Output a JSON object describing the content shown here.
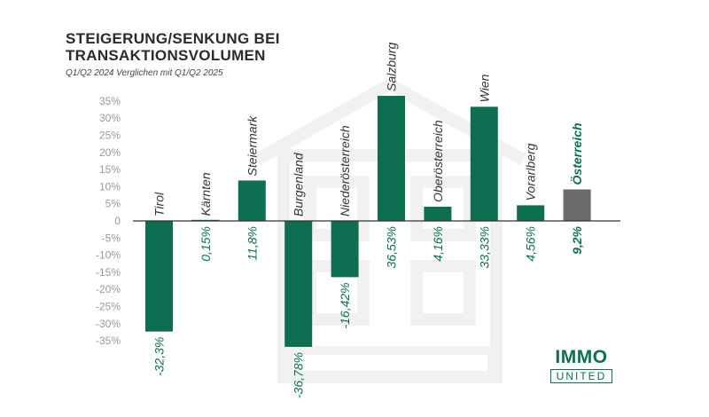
{
  "header": {
    "title": "STEIGERUNG/SENKUNG BEI TRANSAKTIONSVOLUMEN",
    "subtitle": "Q1/Q2 2024 Verglichen mit Q1/Q2 2025"
  },
  "logo": {
    "line1": "IMMO",
    "line2": "UNITED"
  },
  "colors": {
    "bar": "#0d6e52",
    "total_bar": "#6b6b6b",
    "axis_text": "#9a9a9a",
    "label": "#0d6e52"
  },
  "chart_data": {
    "type": "bar",
    "categories": [
      "Tirol",
      "Kärnten",
      "Steiermark",
      "Burgenland",
      "Niederösterreich",
      "Salzburg",
      "Oberösterreich",
      "Wien",
      "Vorarlberg",
      "Österreich"
    ],
    "values": [
      -32.3,
      0.15,
      11.8,
      -36.78,
      -16.42,
      36.53,
      4.16,
      33.33,
      4.56,
      9.2
    ],
    "value_labels": [
      "-32,3%",
      "0,15%",
      "11,8%",
      "-36,78%",
      "-16,42%",
      "36,53%",
      "4,16%",
      "33,33%",
      "4,56%",
      "9,2%"
    ],
    "highlight": "Österreich",
    "ylim": [
      -35,
      35
    ],
    "yticks": [
      "-35%",
      "-30%",
      "-25%",
      "-20%",
      "-15%",
      "-10%",
      "-5%",
      "0",
      "5%",
      "10%",
      "15%",
      "20%",
      "25%",
      "30%",
      "35%"
    ],
    "ytick_values": [
      -35,
      -30,
      -25,
      -20,
      -15,
      -10,
      -5,
      0,
      5,
      10,
      15,
      20,
      25,
      30,
      35
    ],
    "title": "STEIGERUNG/SENKUNG BEI TRANSAKTIONSVOLUMEN",
    "subtitle": "Q1/Q2 2024 Verglichen mit Q1/Q2 2025",
    "grid": false
  }
}
